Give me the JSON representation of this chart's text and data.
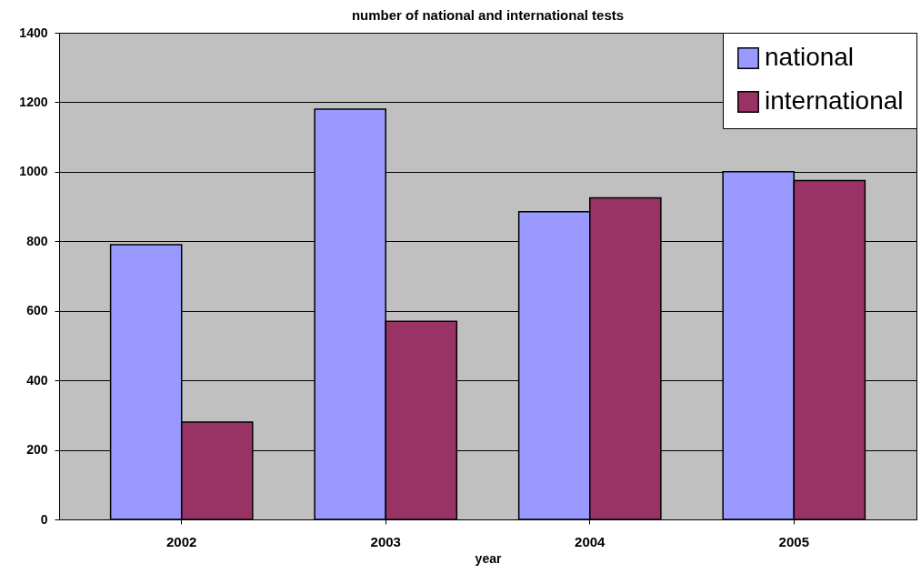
{
  "chart_data": {
    "type": "bar",
    "title": "number of national and international tests",
    "xlabel": "year",
    "categories": [
      "2002",
      "2003",
      "2004",
      "2005"
    ],
    "series": [
      {
        "name": "national",
        "color": "#9999ff",
        "values": [
          790,
          1180,
          885,
          1000
        ]
      },
      {
        "name": "international",
        "color": "#993366",
        "values": [
          280,
          570,
          925,
          975
        ]
      }
    ],
    "ylim": [
      0,
      1400
    ],
    "yticks": [
      0,
      200,
      400,
      600,
      800,
      1000,
      1200,
      1400
    ],
    "grid": "y",
    "legend": "top right"
  }
}
